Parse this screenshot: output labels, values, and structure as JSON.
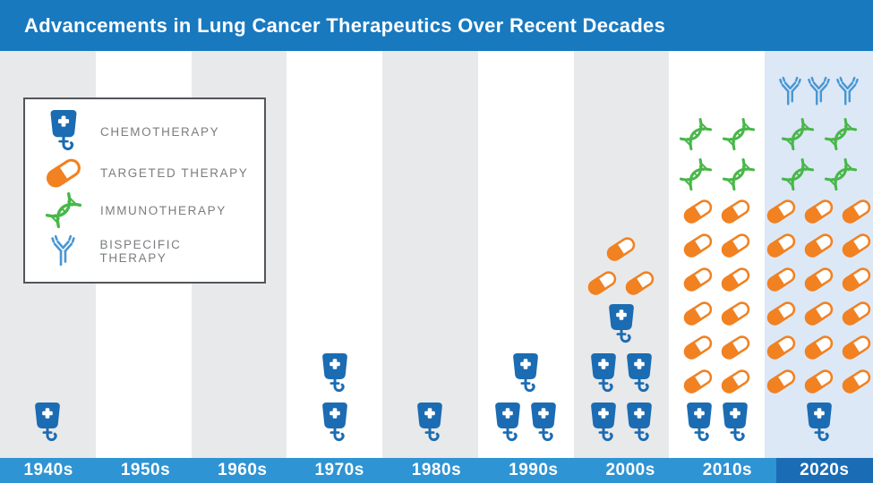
{
  "header": {
    "title": "Advancements in Lung Cancer Therapeutics Over Recent Decades"
  },
  "colors": {
    "header_bg": "#1879bf",
    "footer_bg": "#2f94d3",
    "footer_highlight_bg": "#1a6cb5",
    "col_gray": "#e8e9eb",
    "col_white": "#ffffff",
    "col_highlight": "#dce8f6",
    "chemo": "#1b6cb2",
    "targeted": "#f18121",
    "immuno": "#48b749",
    "bispecific": "#4a97d3",
    "legend_border": "#545559",
    "legend_text": "#7b7d80",
    "title_text": "#ffffff"
  },
  "legend": {
    "items": [
      {
        "icon": "chemo",
        "label": "CHEMOTHERAPY"
      },
      {
        "icon": "targeted",
        "label": "TARGETED THERAPY"
      },
      {
        "icon": "immuno",
        "label": "IMMUNOTHERAPY"
      },
      {
        "icon": "bispecific",
        "label": "BISPECIFIC THERAPY"
      }
    ]
  },
  "chart_data": {
    "type": "bar",
    "subtype": "pictogram",
    "title": "Advancements in Lung Cancer Therapeutics Over Recent Decades",
    "categories": [
      "1940s",
      "1950s",
      "1960s",
      "1970s",
      "1980s",
      "1990s",
      "2000s",
      "2010s",
      "2020s"
    ],
    "unit": "therapies (one icon = one therapy)",
    "series": [
      {
        "name": "Chemotherapy",
        "values": [
          1,
          0,
          0,
          2,
          1,
          3,
          5,
          2,
          1
        ]
      },
      {
        "name": "Targeted Therapy",
        "values": [
          0,
          0,
          0,
          0,
          0,
          0,
          3,
          12,
          18
        ]
      },
      {
        "name": "Immunotherapy",
        "values": [
          0,
          0,
          0,
          0,
          0,
          0,
          0,
          4,
          4
        ]
      },
      {
        "name": "Bispecific Therapy",
        "values": [
          0,
          0,
          0,
          0,
          0,
          0,
          0,
          0,
          3
        ]
      }
    ],
    "legend_position": "top-left",
    "highlighted_category": "2020s"
  },
  "columns": [
    {
      "decade": "1940s",
      "tone": "gray",
      "rows": [
        {
          "icon": "chemo",
          "count": 1
        }
      ]
    },
    {
      "decade": "1950s",
      "tone": "white",
      "rows": []
    },
    {
      "decade": "1960s",
      "tone": "gray",
      "rows": []
    },
    {
      "decade": "1970s",
      "tone": "white",
      "rows": [
        {
          "icon": "chemo",
          "count": 1
        },
        {
          "icon": "chemo",
          "count": 1
        }
      ]
    },
    {
      "decade": "1980s",
      "tone": "gray",
      "rows": [
        {
          "icon": "chemo",
          "count": 1
        }
      ]
    },
    {
      "decade": "1990s",
      "tone": "white",
      "rows": [
        {
          "icon": "chemo",
          "count": 1
        },
        {
          "icon": "chemo",
          "count": 2
        }
      ]
    },
    {
      "decade": "2000s",
      "tone": "gray",
      "rows": [
        {
          "icon": "targeted",
          "count": 1
        },
        {
          "icon": "targeted",
          "count": 2
        },
        {
          "icon": "chemo",
          "count": 1
        },
        {
          "icon": "chemo",
          "count": 2
        },
        {
          "icon": "chemo",
          "count": 2
        }
      ]
    },
    {
      "decade": "2010s",
      "tone": "white",
      "rows": [
        {
          "icon": "immuno",
          "count": 2
        },
        {
          "icon": "immuno",
          "count": 2
        },
        {
          "icon": "targeted",
          "count": 2
        },
        {
          "icon": "targeted",
          "count": 2
        },
        {
          "icon": "targeted",
          "count": 2
        },
        {
          "icon": "targeted",
          "count": 2
        },
        {
          "icon": "targeted",
          "count": 2
        },
        {
          "icon": "targeted",
          "count": 2
        },
        {
          "icon": "chemo",
          "count": 2
        }
      ]
    },
    {
      "decade": "2020s",
      "tone": "highlight",
      "rows": [
        {
          "icon": "bispecific",
          "count": 3
        },
        {
          "icon": "immuno",
          "count": 2
        },
        {
          "icon": "immuno",
          "count": 2
        },
        {
          "icon": "targeted",
          "count": 3
        },
        {
          "icon": "targeted",
          "count": 3
        },
        {
          "icon": "targeted",
          "count": 3
        },
        {
          "icon": "targeted",
          "count": 3
        },
        {
          "icon": "targeted",
          "count": 3
        },
        {
          "icon": "targeted",
          "count": 3
        },
        {
          "icon": "chemo",
          "count": 1
        }
      ]
    }
  ]
}
